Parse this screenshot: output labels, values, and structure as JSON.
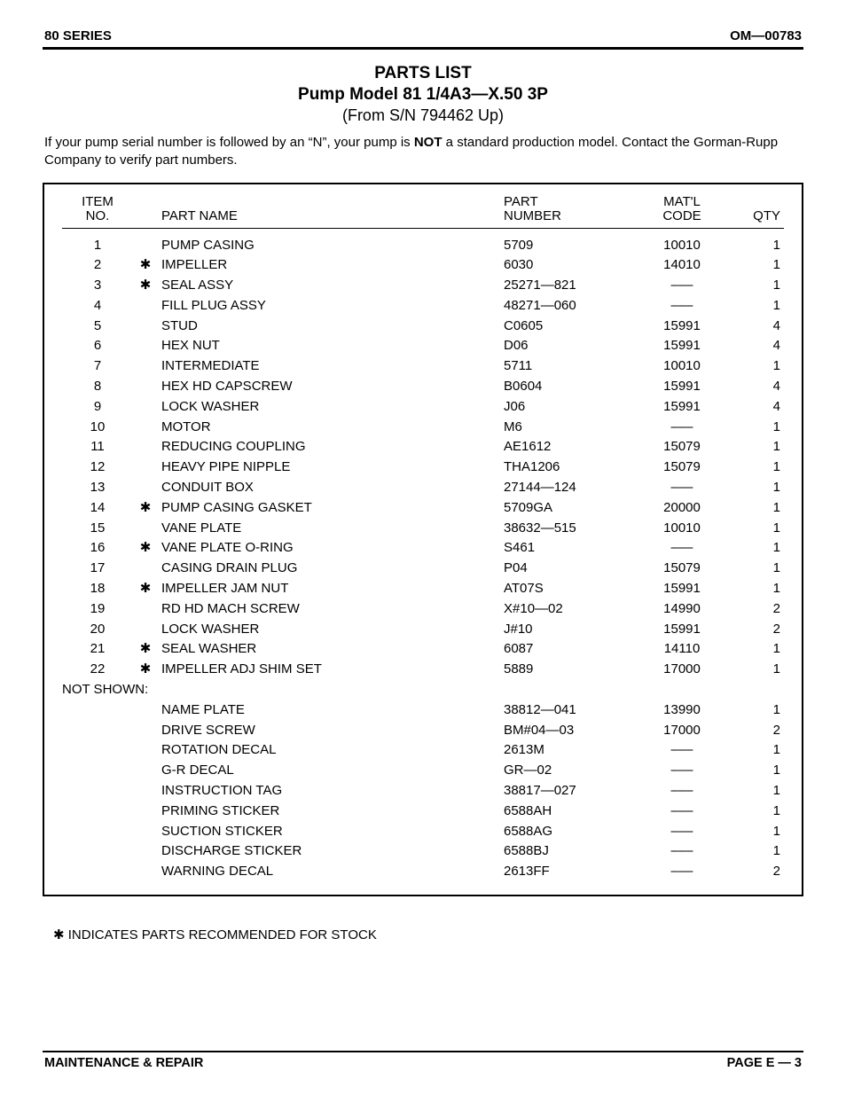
{
  "header": {
    "left": "80 SERIES",
    "right": "OM—00783"
  },
  "title": {
    "line1": "PARTS LIST",
    "line2": "Pump Model 81 1/4A3—X.50 3P",
    "line3": "(From S/N 794462 Up)"
  },
  "intro": {
    "pre": "If your pump serial number is followed by an “N”, your pump is ",
    "strong": "NOT",
    "post": " a standard production model. Contact the Gorman-Rupp Company to verify part numbers."
  },
  "columns": {
    "item_l1": "ITEM",
    "item_l2": "NO.",
    "name": "PART NAME",
    "part_l1": "PART",
    "part_l2": "NUMBER",
    "matl_l1": "MAT'L",
    "matl_l2": "CODE",
    "qty": "QTY"
  },
  "rows": [
    {
      "item": "1",
      "star": "",
      "name": "PUMP CASING",
      "part": "5709",
      "matl": "10010",
      "qty": "1"
    },
    {
      "item": "2",
      "star": "✱",
      "name": "IMPELLER",
      "part": "6030",
      "matl": "14010",
      "qty": "1"
    },
    {
      "item": "3",
      "star": "✱",
      "name": "SEAL ASSY",
      "part": "25271—821",
      "matl": "–––",
      "qty": "1"
    },
    {
      "item": "4",
      "star": "",
      "name": "FILL PLUG ASSY",
      "part": "48271—060",
      "matl": "–––",
      "qty": "1"
    },
    {
      "item": "5",
      "star": "",
      "name": "STUD",
      "part": "C0605",
      "matl": "15991",
      "qty": "4"
    },
    {
      "item": "6",
      "star": "",
      "name": "HEX NUT",
      "part": "D06",
      "matl": "15991",
      "qty": "4"
    },
    {
      "item": "7",
      "star": "",
      "name": "INTERMEDIATE",
      "part": "5711",
      "matl": "10010",
      "qty": "1"
    },
    {
      "item": "8",
      "star": "",
      "name": "HEX HD CAPSCREW",
      "part": "B0604",
      "matl": "15991",
      "qty": "4"
    },
    {
      "item": "9",
      "star": "",
      "name": "LOCK WASHER",
      "part": "J06",
      "matl": "15991",
      "qty": "4"
    },
    {
      "item": "10",
      "star": "",
      "name": "MOTOR",
      "part": "M6",
      "matl": "–––",
      "qty": "1"
    },
    {
      "item": "11",
      "star": "",
      "name": "REDUCING COUPLING",
      "part": "AE1612",
      "matl": "15079",
      "qty": "1"
    },
    {
      "item": "12",
      "star": "",
      "name": "HEAVY PIPE NIPPLE",
      "part": "THA1206",
      "matl": "15079",
      "qty": "1"
    },
    {
      "item": "13",
      "star": "",
      "name": "CONDUIT BOX",
      "part": "27144—124",
      "matl": "–––",
      "qty": "1"
    },
    {
      "item": "14",
      "star": "✱",
      "name": "PUMP CASING GASKET",
      "part": "5709GA",
      "matl": "20000",
      "qty": "1"
    },
    {
      "item": "15",
      "star": "",
      "name": "VANE PLATE",
      "part": "38632—515",
      "matl": "10010",
      "qty": "1"
    },
    {
      "item": "16",
      "star": "✱",
      "name": "VANE PLATE O-RING",
      "part": "S461",
      "matl": "–––",
      "qty": "1"
    },
    {
      "item": "17",
      "star": "",
      "name": "CASING DRAIN PLUG",
      "part": "P04",
      "matl": "15079",
      "qty": "1"
    },
    {
      "item": "18",
      "star": "✱",
      "name": "IMPELLER JAM NUT",
      "part": "AT07S",
      "matl": "15991",
      "qty": "1"
    },
    {
      "item": "19",
      "star": "",
      "name": "RD HD MACH SCREW",
      "part": "X#10—02",
      "matl": "14990",
      "qty": "2"
    },
    {
      "item": "20",
      "star": "",
      "name": "LOCK WASHER",
      "part": "J#10",
      "matl": "15991",
      "qty": "2"
    },
    {
      "item": "21",
      "star": "✱",
      "name": "SEAL WASHER",
      "part": "6087",
      "matl": "14110",
      "qty": "1"
    },
    {
      "item": "22",
      "star": "✱",
      "name": "IMPELLER ADJ SHIM SET",
      "part": "5889",
      "matl": "17000",
      "qty": "1"
    }
  ],
  "not_shown_label": "NOT SHOWN:",
  "not_shown": [
    {
      "name": "NAME PLATE",
      "part": "38812—041",
      "matl": "13990",
      "qty": "1"
    },
    {
      "name": "DRIVE SCREW",
      "part": "BM#04—03",
      "matl": "17000",
      "qty": "2"
    },
    {
      "name": "ROTATION DECAL",
      "part": "2613M",
      "matl": "–––",
      "qty": "1"
    },
    {
      "name": "G-R DECAL",
      "part": "GR—02",
      "matl": "–––",
      "qty": "1"
    },
    {
      "name": "INSTRUCTION TAG",
      "part": "38817—027",
      "matl": "–––",
      "qty": "1"
    },
    {
      "name": "PRIMING STICKER",
      "part": "6588AH",
      "matl": "–––",
      "qty": "1"
    },
    {
      "name": "SUCTION STICKER",
      "part": "6588AG",
      "matl": "–––",
      "qty": "1"
    },
    {
      "name": "DISCHARGE STICKER",
      "part": "6588BJ",
      "matl": "–––",
      "qty": "1"
    },
    {
      "name": "WARNING DECAL",
      "part": "2613FF",
      "matl": "–––",
      "qty": "2"
    }
  ],
  "footnote": "✱ INDICATES PARTS RECOMMENDED FOR STOCK",
  "footer": {
    "left": "MAINTENANCE & REPAIR",
    "right": "PAGE E — 3"
  }
}
